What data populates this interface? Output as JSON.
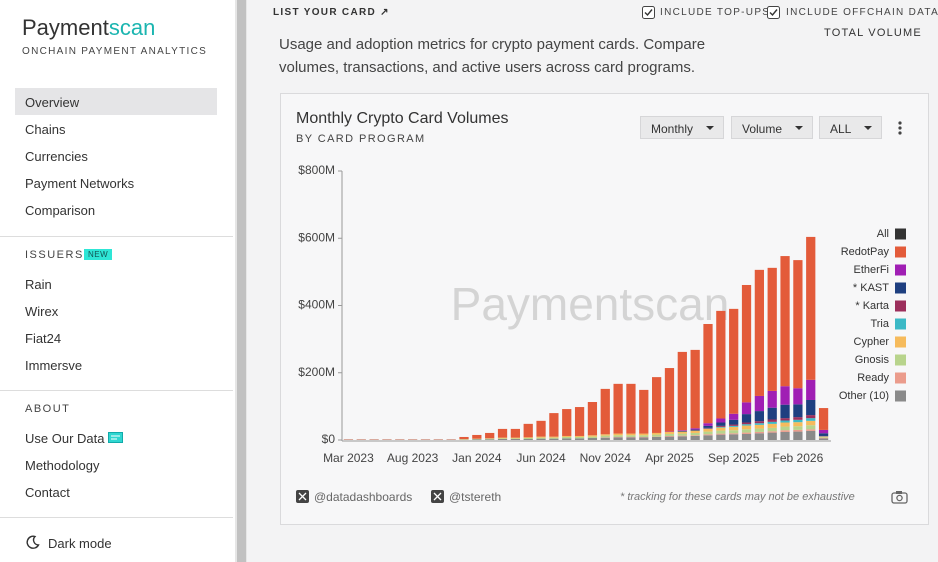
{
  "sidebar": {
    "brand": [
      "Payment",
      "scan"
    ],
    "tagline": "ONCHAIN PAYMENT ANALYTICS",
    "nav": [
      "Overview",
      "Chains",
      "Currencies",
      "Payment Networks",
      "Comparison"
    ],
    "issuers": {
      "heading": "ISSUERS",
      "badge": "NEW",
      "items": [
        "Rain",
        "Wirex",
        "Fiat24",
        "Immersve"
      ]
    },
    "about": {
      "heading": "ABOUT",
      "items": [
        "Use Our Data",
        "Methodology",
        "Contact"
      ]
    },
    "dark_mode": "Dark mode"
  },
  "topbar": {
    "list_card": "LIST YOUR CARD ↗",
    "toggles": [
      "INCLUDE TOP-UPS",
      "INCLUDE OFFCHAIN DATA"
    ],
    "metric": "TOTAL VOLUME"
  },
  "description": "Usage and adoption metrics for crypto payment cards. Compare volumes, transactions, and active users across card programs.",
  "card": {
    "controls": [
      "Monthly",
      "Volume",
      "ALL"
    ],
    "footer": {
      "handles": [
        "@datadashboards",
        "@tstereth"
      ],
      "note": "* tracking for these cards may not be exhaustive"
    }
  },
  "chart_data": {
    "type": "stacked_bar",
    "title": "Monthly Crypto Card Volumes",
    "subtitle": "BY CARD PROGRAM",
    "watermark": "Paymentscan",
    "categories": [
      "Mar 2023",
      null,
      null,
      null,
      null,
      "Aug 2023",
      null,
      null,
      null,
      null,
      "Jan 2024",
      null,
      null,
      null,
      null,
      "Jun 2024",
      null,
      null,
      null,
      null,
      "Nov 2024",
      null,
      null,
      null,
      null,
      "Apr 2025",
      null,
      null,
      null,
      null,
      "Sep 2025",
      null,
      null,
      null,
      null,
      "Feb 2026",
      null,
      null
    ],
    "ylim": [
      0,
      800
    ],
    "yticks": [
      {
        "value": 0,
        "label": "$0"
      },
      {
        "value": 200,
        "label": "$200M"
      },
      {
        "value": 400,
        "label": "$400M"
      },
      {
        "value": 600,
        "label": "$600M"
      },
      {
        "value": 800,
        "label": "$800M"
      }
    ],
    "grid": false,
    "legend": "right",
    "series": [
      {
        "name": "All",
        "color": "#333333",
        "values": [
          null,
          null,
          null,
          null,
          null,
          null,
          null,
          null,
          null,
          null,
          null,
          null,
          null,
          null,
          null,
          null,
          null,
          null,
          null,
          null,
          null,
          null,
          null,
          null,
          null,
          null,
          null,
          null,
          null,
          null,
          null,
          null,
          null,
          null,
          null,
          null,
          null,
          null
        ]
      },
      {
        "name": "RedotPay",
        "color": "#e35b3a",
        "values": [
          1,
          1,
          1,
          1,
          1,
          1,
          1,
          1,
          1,
          6,
          11,
          16,
          26,
          26,
          40,
          47,
          70,
          80,
          86,
          99,
          135,
          148,
          148,
          130,
          166,
          189,
          233,
          233,
          295,
          320,
          312,
          349,
          375,
          366,
          387,
          381,
          425,
          65
        ]
      },
      {
        "name": "EtherFi",
        "color": "#a01fb4",
        "values": [
          0,
          0,
          0,
          0,
          0,
          0,
          0,
          0,
          0,
          0,
          0,
          0,
          0,
          0,
          0,
          0,
          0,
          0,
          0,
          0,
          0,
          0,
          0,
          0,
          0,
          1,
          2,
          4,
          8,
          12,
          18,
          35,
          45,
          50,
          55,
          48,
          60,
          10
        ]
      },
      {
        "name": "* KAST",
        "color": "#1e3f80",
        "values": [
          0,
          0,
          0,
          0,
          0,
          0,
          0,
          0,
          0,
          0,
          0,
          0,
          0,
          0,
          0,
          0,
          0,
          0,
          0,
          0,
          0,
          0,
          0,
          0,
          0,
          0,
          2,
          3,
          6,
          10,
          14,
          25,
          30,
          35,
          40,
          38,
          45,
          8
        ]
      },
      {
        "name": "* Karta",
        "color": "#9c2f5c",
        "values": [
          0,
          0,
          0,
          0,
          0,
          0,
          0,
          0,
          0,
          0,
          0,
          0,
          0,
          0,
          0,
          0,
          0,
          0,
          0,
          0,
          0,
          0,
          0,
          0,
          0,
          0,
          0,
          0,
          2,
          3,
          4,
          5,
          6,
          7,
          7,
          8,
          9,
          1
        ]
      },
      {
        "name": "Tria",
        "color": "#3cb9c6",
        "values": [
          0,
          0,
          0,
          0,
          0,
          0,
          0,
          0,
          0,
          0,
          0,
          0,
          0,
          0,
          0,
          0,
          0,
          0,
          0,
          0,
          0,
          0,
          0,
          0,
          0,
          0,
          0,
          0,
          1,
          2,
          3,
          4,
          5,
          6,
          6,
          7,
          8,
          1
        ]
      },
      {
        "name": "Cypher",
        "color": "#f6bb5c",
        "values": [
          0,
          0,
          0,
          0,
          0,
          0,
          0,
          0,
          0,
          1,
          1,
          1,
          2,
          2,
          2,
          3,
          3,
          3,
          3,
          4,
          4,
          5,
          5,
          5,
          5,
          6,
          6,
          7,
          8,
          9,
          10,
          11,
          11,
          12,
          12,
          12,
          13,
          2
        ]
      },
      {
        "name": "Gnosis",
        "color": "#b8d48c",
        "values": [
          0,
          0,
          0,
          0,
          0,
          0,
          0,
          0,
          0,
          1,
          1,
          2,
          2,
          2,
          3,
          3,
          3,
          4,
          4,
          4,
          5,
          5,
          5,
          5,
          6,
          6,
          6,
          7,
          8,
          9,
          9,
          10,
          10,
          10,
          11,
          11,
          12,
          2
        ]
      },
      {
        "name": "Ready",
        "color": "#eb9c8c",
        "values": [
          0,
          0,
          0,
          0,
          0,
          0,
          0,
          0,
          0,
          0,
          0,
          0,
          0,
          0,
          0,
          0,
          0,
          0,
          0,
          0,
          1,
          1,
          1,
          1,
          1,
          2,
          2,
          2,
          3,
          3,
          3,
          4,
          4,
          4,
          5,
          5,
          5,
          1
        ]
      },
      {
        "name": "Other (10)",
        "color": "#8a8a8a",
        "values": [
          1,
          1,
          1,
          1,
          1,
          1,
          1,
          1,
          1,
          1,
          2,
          2,
          3,
          3,
          3,
          4,
          4,
          5,
          5,
          6,
          7,
          8,
          8,
          8,
          9,
          10,
          11,
          12,
          14,
          16,
          17,
          18,
          20,
          22,
          24,
          25,
          27,
          5
        ]
      }
    ]
  }
}
